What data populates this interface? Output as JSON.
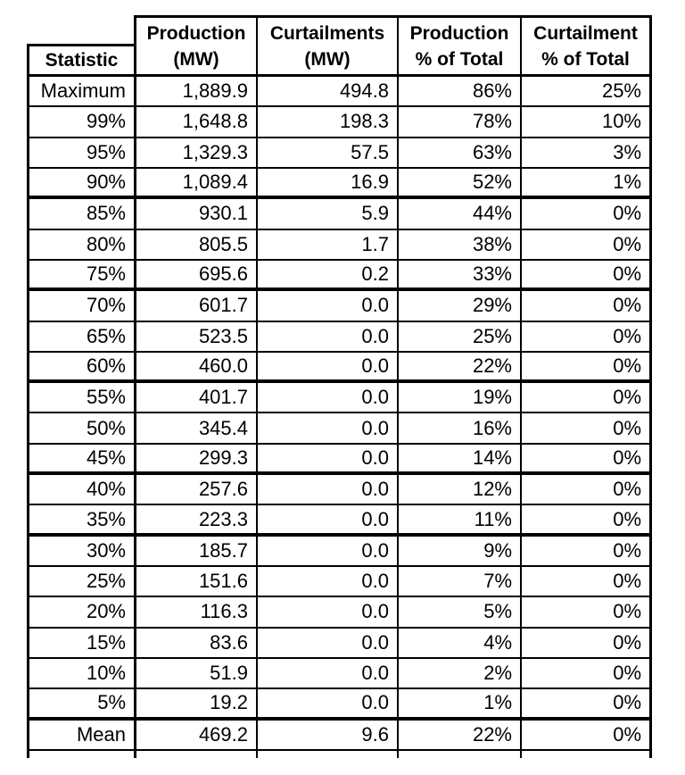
{
  "table": {
    "border_color": "#000000",
    "text_color": "#000000",
    "background_color": "#ffffff",
    "header": {
      "statistic": "Statistic",
      "columns": [
        {
          "line1": "Production",
          "line2": "(MW)"
        },
        {
          "line1": "Curtailments",
          "line2": "(MW)"
        },
        {
          "line1": "Production",
          "line2": "% of Total"
        },
        {
          "line1": "Curtailment",
          "line2": "% of Total"
        }
      ]
    },
    "rows": [
      {
        "statistic": "Maximum",
        "production_mw": "1,889.9",
        "curtailments_mw": "494.8",
        "production_pct_of_total": "86%",
        "curtailment_pct_of_total": "25%",
        "thick_bottom": false
      },
      {
        "statistic": "99%",
        "production_mw": "1,648.8",
        "curtailments_mw": "198.3",
        "production_pct_of_total": "78%",
        "curtailment_pct_of_total": "10%",
        "thick_bottom": false
      },
      {
        "statistic": "95%",
        "production_mw": "1,329.3",
        "curtailments_mw": "57.5",
        "production_pct_of_total": "63%",
        "curtailment_pct_of_total": "3%",
        "thick_bottom": false
      },
      {
        "statistic": "90%",
        "production_mw": "1,089.4",
        "curtailments_mw": "16.9",
        "production_pct_of_total": "52%",
        "curtailment_pct_of_total": "1%",
        "thick_bottom": true
      },
      {
        "statistic": "85%",
        "production_mw": "930.1",
        "curtailments_mw": "5.9",
        "production_pct_of_total": "44%",
        "curtailment_pct_of_total": "0%",
        "thick_bottom": false
      },
      {
        "statistic": "80%",
        "production_mw": "805.5",
        "curtailments_mw": "1.7",
        "production_pct_of_total": "38%",
        "curtailment_pct_of_total": "0%",
        "thick_bottom": false
      },
      {
        "statistic": "75%",
        "production_mw": "695.6",
        "curtailments_mw": "0.2",
        "production_pct_of_total": "33%",
        "curtailment_pct_of_total": "0%",
        "thick_bottom": true
      },
      {
        "statistic": "70%",
        "production_mw": "601.7",
        "curtailments_mw": "0.0",
        "production_pct_of_total": "29%",
        "curtailment_pct_of_total": "0%",
        "thick_bottom": false
      },
      {
        "statistic": "65%",
        "production_mw": "523.5",
        "curtailments_mw": "0.0",
        "production_pct_of_total": "25%",
        "curtailment_pct_of_total": "0%",
        "thick_bottom": false
      },
      {
        "statistic": "60%",
        "production_mw": "460.0",
        "curtailments_mw": "0.0",
        "production_pct_of_total": "22%",
        "curtailment_pct_of_total": "0%",
        "thick_bottom": true
      },
      {
        "statistic": "55%",
        "production_mw": "401.7",
        "curtailments_mw": "0.0",
        "production_pct_of_total": "19%",
        "curtailment_pct_of_total": "0%",
        "thick_bottom": false
      },
      {
        "statistic": "50%",
        "production_mw": "345.4",
        "curtailments_mw": "0.0",
        "production_pct_of_total": "16%",
        "curtailment_pct_of_total": "0%",
        "thick_bottom": false
      },
      {
        "statistic": "45%",
        "production_mw": "299.3",
        "curtailments_mw": "0.0",
        "production_pct_of_total": "14%",
        "curtailment_pct_of_total": "0%",
        "thick_bottom": true
      },
      {
        "statistic": "40%",
        "production_mw": "257.6",
        "curtailments_mw": "0.0",
        "production_pct_of_total": "12%",
        "curtailment_pct_of_total": "0%",
        "thick_bottom": false
      },
      {
        "statistic": "35%",
        "production_mw": "223.3",
        "curtailments_mw": "0.0",
        "production_pct_of_total": "11%",
        "curtailment_pct_of_total": "0%",
        "thick_bottom": true
      },
      {
        "statistic": "30%",
        "production_mw": "185.7",
        "curtailments_mw": "0.0",
        "production_pct_of_total": "9%",
        "curtailment_pct_of_total": "0%",
        "thick_bottom": false
      },
      {
        "statistic": "25%",
        "production_mw": "151.6",
        "curtailments_mw": "0.0",
        "production_pct_of_total": "7%",
        "curtailment_pct_of_total": "0%",
        "thick_bottom": false
      },
      {
        "statistic": "20%",
        "production_mw": "116.3",
        "curtailments_mw": "0.0",
        "production_pct_of_total": "5%",
        "curtailment_pct_of_total": "0%",
        "thick_bottom": false
      },
      {
        "statistic": "15%",
        "production_mw": "83.6",
        "curtailments_mw": "0.0",
        "production_pct_of_total": "4%",
        "curtailment_pct_of_total": "0%",
        "thick_bottom": false
      },
      {
        "statistic": "10%",
        "production_mw": "51.9",
        "curtailments_mw": "0.0",
        "production_pct_of_total": "2%",
        "curtailment_pct_of_total": "0%",
        "thick_bottom": false
      },
      {
        "statistic": "5%",
        "production_mw": "19.2",
        "curtailments_mw": "0.0",
        "production_pct_of_total": "1%",
        "curtailment_pct_of_total": "0%",
        "thick_bottom": true
      },
      {
        "statistic": "Mean",
        "production_mw": "469.2",
        "curtailments_mw": "9.6",
        "production_pct_of_total": "22%",
        "curtailment_pct_of_total": "0%",
        "thick_bottom": false
      }
    ]
  }
}
